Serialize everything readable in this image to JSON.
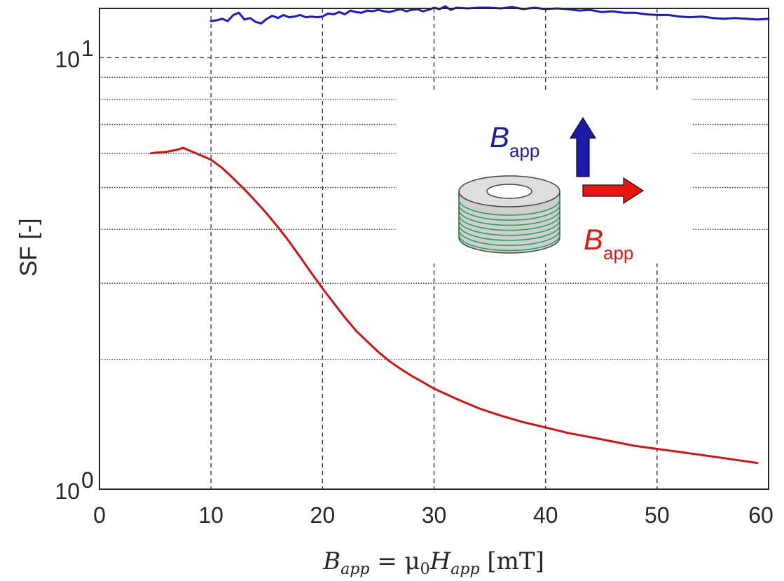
{
  "chart_data": {
    "type": "line",
    "ylabel": "SF [-]",
    "xlabel": "B_app = μ0 H_app [mT]",
    "xlim": [
      0,
      60
    ],
    "ylim": [
      1,
      13
    ],
    "yscale": "log",
    "grid": true,
    "x_ticks": [
      "0",
      "10",
      "20",
      "30",
      "40",
      "50",
      "60"
    ],
    "y_ticks": [
      {
        "base": "10",
        "exp": "0"
      },
      {
        "base": "10",
        "exp": "1"
      }
    ],
    "series": [
      {
        "color": "#1a1acc",
        "x": [
          10,
          10.5,
          11,
          11.5,
          12,
          12.5,
          13,
          13.5,
          14,
          14.5,
          15,
          15.5,
          16,
          16.5,
          17,
          17.5,
          18,
          18.5,
          19,
          19.5,
          20,
          20.5,
          21,
          21.5,
          22,
          22.5,
          23,
          23.5,
          24,
          24.5,
          25,
          25.5,
          26,
          26.5,
          27,
          27.5,
          28,
          28.5,
          29,
          29.5,
          30,
          30.5,
          31,
          31.5,
          32,
          33,
          34,
          35,
          36,
          37,
          38,
          39,
          40,
          41,
          42,
          43,
          44,
          45,
          46,
          47,
          48,
          49,
          50,
          51,
          52,
          53,
          54,
          55,
          56,
          57,
          58,
          59,
          60
        ],
        "values": [
          12.15,
          12.2,
          12.3,
          12.15,
          12.55,
          12.7,
          12.25,
          12.35,
          12.1,
          12.0,
          12.3,
          12.5,
          12.35,
          12.55,
          12.4,
          12.45,
          12.55,
          12.4,
          12.45,
          12.4,
          12.45,
          12.65,
          12.6,
          12.75,
          12.6,
          12.85,
          12.75,
          12.7,
          12.85,
          12.8,
          12.9,
          12.8,
          12.75,
          12.85,
          12.95,
          12.8,
          12.9,
          12.95,
          12.8,
          12.9,
          13.05,
          12.95,
          13.15,
          12.9,
          13.05,
          13.0,
          13.05,
          13.05,
          13.0,
          13.1,
          12.95,
          13.05,
          12.95,
          13.0,
          12.95,
          12.85,
          12.9,
          12.75,
          12.8,
          12.7,
          12.7,
          12.6,
          12.55,
          12.55,
          12.45,
          12.4,
          12.45,
          12.35,
          12.3,
          12.35,
          12.3,
          12.25,
          12.3
        ]
      },
      {
        "color": "#d11313",
        "x": [
          4.6,
          5,
          6,
          7,
          7.5,
          8,
          9,
          10,
          11,
          12,
          13,
          14,
          15,
          16,
          17,
          18,
          19,
          20,
          21,
          22,
          23,
          24,
          25,
          26,
          27,
          28,
          29,
          30,
          32,
          34,
          36,
          38,
          40,
          42,
          44,
          46,
          48,
          50,
          52,
          54,
          56,
          58,
          59
        ],
        "values": [
          6.0,
          6.02,
          6.05,
          6.12,
          6.18,
          6.1,
          5.95,
          5.8,
          5.55,
          5.25,
          4.95,
          4.65,
          4.35,
          4.05,
          3.75,
          3.45,
          3.17,
          2.92,
          2.7,
          2.5,
          2.33,
          2.2,
          2.08,
          1.98,
          1.9,
          1.83,
          1.77,
          1.71,
          1.62,
          1.54,
          1.48,
          1.43,
          1.39,
          1.35,
          1.32,
          1.29,
          1.26,
          1.24,
          1.22,
          1.2,
          1.18,
          1.16,
          1.15
        ]
      }
    ]
  },
  "inset": {
    "blue_label": "B",
    "blue_sub": "app",
    "blue_color": "#1a1aa8",
    "red_label": "B",
    "red_sub": "app",
    "red_color": "#e8140f"
  }
}
